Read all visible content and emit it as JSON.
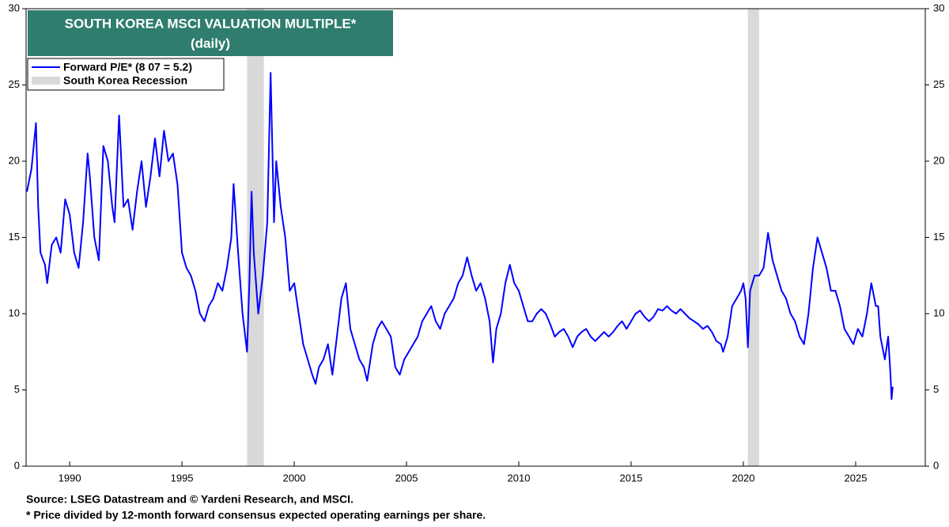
{
  "chart_data": {
    "type": "line",
    "title": "SOUTH KOREA MSCI VALUATION MULTIPLE*",
    "subtitle": "(daily)",
    "recession_label": "South Korea Recession",
    "recession_color": "#d9d9d9",
    "recessions": [
      [
        1997.9,
        1998.65
      ],
      [
        2020.2,
        2020.7
      ]
    ],
    "notes": [
      "Source: LSEG Datastream and © Yardeni Research, and MSCI.",
      "* Price divided by 12-month forward consensus expected operating earnings per share."
    ],
    "xlim": [
      1988.06,
      2028.1
    ],
    "xticks": [
      1990,
      1995,
      2000,
      2005,
      2010,
      2015,
      2020,
      2025
    ],
    "ylim": [
      0,
      30
    ],
    "yticks": [
      0,
      5,
      10,
      15,
      20,
      25,
      30
    ],
    "grid": false,
    "series": [
      {
        "name": "Forward P/E* (8 07 = 5.2)",
        "color": "#0000ff",
        "x": [
          1988.1,
          1988.3,
          1988.5,
          1988.6,
          1988.7,
          1988.9,
          1989.0,
          1989.2,
          1989.4,
          1989.6,
          1989.8,
          1990.0,
          1990.2,
          1990.4,
          1990.6,
          1990.8,
          1990.9,
          1991.1,
          1991.3,
          1991.5,
          1991.7,
          1991.9,
          1992.0,
          1992.2,
          1992.4,
          1992.6,
          1992.8,
          1993.0,
          1993.2,
          1993.4,
          1993.6,
          1993.8,
          1994.0,
          1994.2,
          1994.4,
          1994.6,
          1994.8,
          1995.0,
          1995.2,
          1995.4,
          1995.6,
          1995.8,
          1996.0,
          1996.2,
          1996.4,
          1996.6,
          1996.8,
          1997.0,
          1997.2,
          1997.3,
          1997.5,
          1997.7,
          1997.9,
          1998.0,
          1998.1,
          1998.2,
          1998.4,
          1998.6,
          1998.8,
          1998.95,
          1999.1,
          1999.2,
          1999.4,
          1999.6,
          1999.8,
          2000.0,
          2000.2,
          2000.4,
          2000.6,
          2000.8,
          2000.95,
          2001.1,
          2001.3,
          2001.5,
          2001.7,
          2001.9,
          2002.1,
          2002.3,
          2002.5,
          2002.7,
          2002.9,
          2003.1,
          2003.25,
          2003.5,
          2003.7,
          2003.9,
          2004.1,
          2004.3,
          2004.5,
          2004.7,
          2004.9,
          2005.1,
          2005.3,
          2005.5,
          2005.7,
          2005.9,
          2006.1,
          2006.3,
          2006.5,
          2006.7,
          2006.9,
          2007.1,
          2007.3,
          2007.5,
          2007.7,
          2007.9,
          2008.1,
          2008.3,
          2008.5,
          2008.7,
          2008.85,
          2009.0,
          2009.2,
          2009.4,
          2009.6,
          2009.8,
          2010.0,
          2010.2,
          2010.4,
          2010.6,
          2010.8,
          2011.0,
          2011.2,
          2011.4,
          2011.6,
          2011.8,
          2012.0,
          2012.2,
          2012.4,
          2012.6,
          2012.8,
          2013.0,
          2013.2,
          2013.4,
          2013.6,
          2013.8,
          2014.0,
          2014.2,
          2014.4,
          2014.6,
          2014.8,
          2015.0,
          2015.2,
          2015.4,
          2015.6,
          2015.8,
          2016.0,
          2016.2,
          2016.4,
          2016.6,
          2016.8,
          2017.0,
          2017.2,
          2017.4,
          2017.6,
          2017.8,
          2018.0,
          2018.2,
          2018.4,
          2018.6,
          2018.8,
          2019.0,
          2019.1,
          2019.3,
          2019.5,
          2019.7,
          2019.9,
          2020.0,
          2020.1,
          2020.2,
          2020.3,
          2020.5,
          2020.7,
          2020.9,
          2021.1,
          2021.3,
          2021.5,
          2021.7,
          2021.9,
          2022.1,
          2022.3,
          2022.5,
          2022.7,
          2022.9,
          2023.1,
          2023.3,
          2023.5,
          2023.7,
          2023.9,
          2024.1,
          2024.3,
          2024.5,
          2024.7,
          2024.9,
          2025.1,
          2025.3,
          2025.5,
          2025.7,
          2025.9,
          2026.0,
          2026.1,
          2026.3,
          2026.45,
          2026.55,
          2026.6,
          2026.65
        ],
        "values": [
          18,
          19.5,
          22.5,
          17,
          14,
          13.2,
          12,
          14.5,
          15,
          14,
          17.5,
          16.5,
          14,
          13,
          16,
          20.5,
          19,
          15,
          13.5,
          21,
          20,
          17,
          16,
          23,
          17,
          17.5,
          15.5,
          18,
          20,
          17,
          19,
          21.5,
          19,
          22,
          20,
          20.5,
          18.5,
          14,
          13,
          12.5,
          11.5,
          10,
          9.5,
          10.5,
          11,
          12,
          11.5,
          13,
          15,
          18.5,
          14,
          10,
          7.5,
          12,
          18,
          14,
          10,
          12.5,
          16,
          25.8,
          16,
          20,
          17,
          15,
          11.5,
          12,
          10,
          8,
          7,
          6,
          5.4,
          6.5,
          7,
          8,
          6,
          8.5,
          11,
          12,
          9,
          8,
          7,
          6.5,
          5.6,
          8,
          9,
          9.5,
          9,
          8.5,
          6.5,
          6,
          7,
          7.5,
          8,
          8.5,
          9.5,
          10,
          10.5,
          9.5,
          9,
          10,
          10.5,
          11,
          12,
          12.5,
          13.7,
          12.5,
          11.5,
          12,
          11,
          9.5,
          6.8,
          9,
          10,
          12,
          13.2,
          12,
          11.5,
          10.5,
          9.5,
          9.5,
          10,
          10.3,
          10,
          9.3,
          8.5,
          8.8,
          9,
          8.5,
          7.8,
          8.5,
          8.8,
          9,
          8.5,
          8.2,
          8.5,
          8.8,
          8.5,
          8.8,
          9.2,
          9.5,
          9,
          9.5,
          10,
          10.2,
          9.8,
          9.5,
          9.8,
          10.3,
          10.2,
          10.5,
          10.2,
          10,
          10.3,
          10,
          9.7,
          9.5,
          9.3,
          9,
          9.2,
          8.8,
          8.2,
          8,
          7.5,
          8.5,
          10.5,
          11,
          11.5,
          12,
          11,
          7.8,
          11.5,
          12.5,
          12.5,
          13,
          15.3,
          13.5,
          12.5,
          11.5,
          11,
          10,
          9.5,
          8.5,
          8,
          10,
          13,
          15,
          14,
          13,
          11.5,
          11.5,
          10.5,
          9,
          8.5,
          8,
          9,
          8.5,
          10,
          12,
          10.5,
          10.5,
          8.5,
          7,
          8.5,
          6,
          4.4,
          5.2
        ]
      }
    ]
  }
}
